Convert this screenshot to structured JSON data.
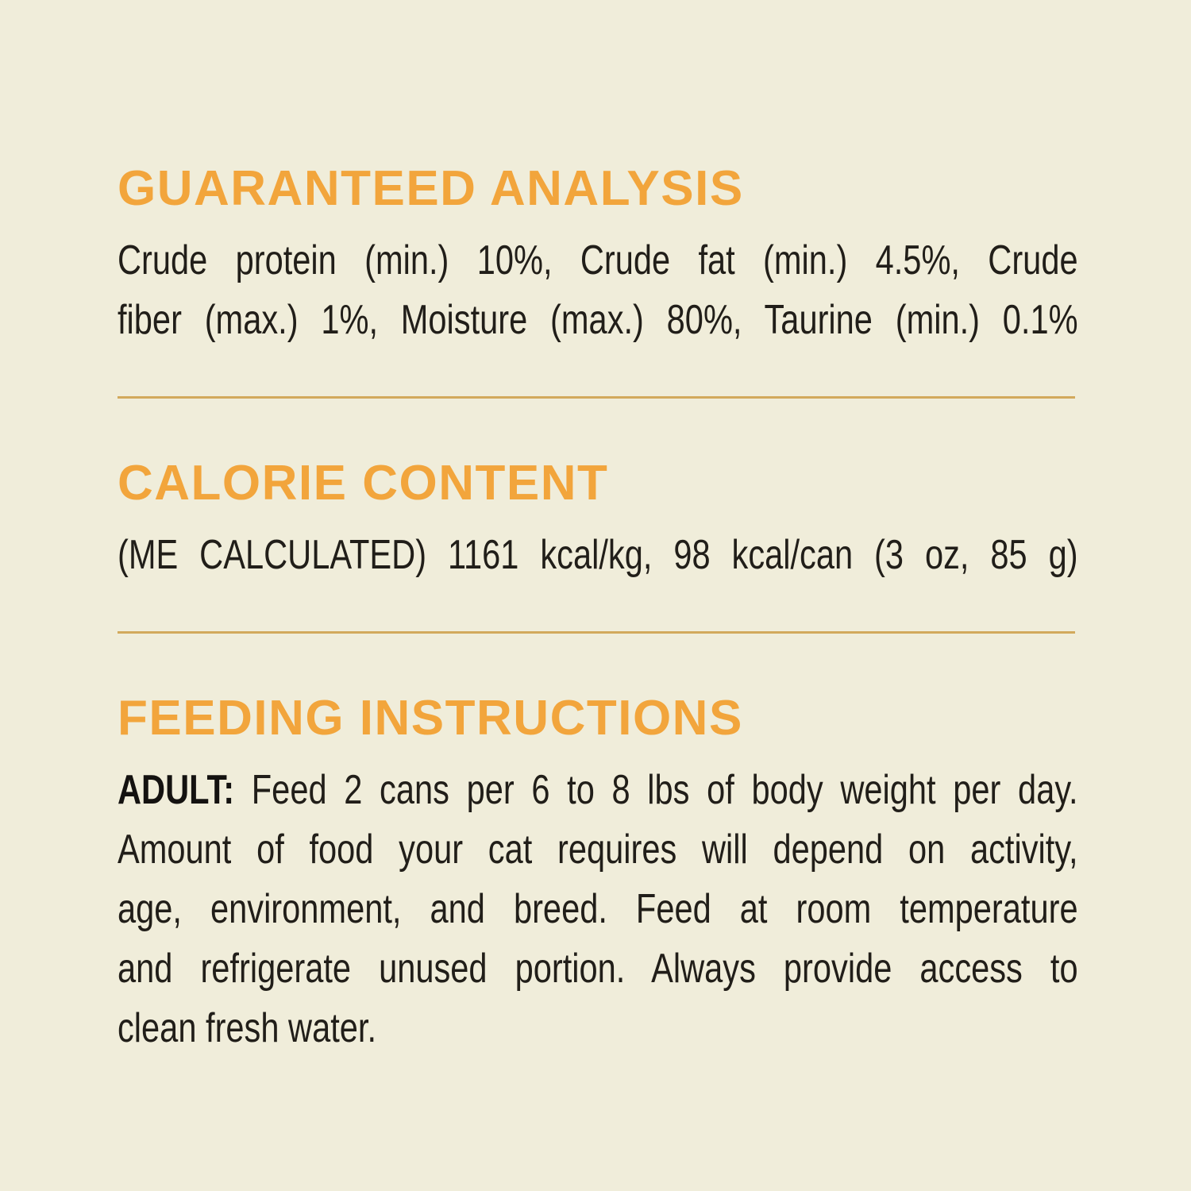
{
  "page": {
    "background_color": "#f0edda",
    "accent_color": "#f2a53c",
    "divider_color": "#d2a95c",
    "text_color": "#211e19"
  },
  "sections": {
    "guaranteed_analysis": {
      "title": "GUARANTEED ANALYSIS",
      "lines": [
        "Crude protein (min.) 10%, Crude fat (min.) 4.5%, Crude",
        "fiber (max.) 1%, Moisture (max.) 80%, Taurine (min.) 0.1%"
      ],
      "values": {
        "crude_protein_min": "10%",
        "crude_fat_min": "4.5%",
        "crude_fiber_max": "1%",
        "moisture_max": "80%",
        "taurine_min": "0.1%"
      }
    },
    "calorie_content": {
      "title": "CALORIE CONTENT",
      "line": "(ME CALCULATED) 1161 kcal/kg, 98 kcal/can (3 oz, 85 g)",
      "values": {
        "method": "ME CALCULATED",
        "kcal_per_kg": "1161",
        "kcal_per_can": "98",
        "can_size": "3 oz, 85 g"
      }
    },
    "feeding_instructions": {
      "title": "FEEDING INSTRUCTIONS",
      "adult_label": "ADULT:",
      "lines": [
        "Feed 2 cans per 6 to 8 lbs of body weight per day.",
        "Amount of food your cat requires will depend on activity,",
        "age, environment, and breed. Feed at room temperature",
        "and refrigerate unused portion. Always provide access to",
        "clean fresh water."
      ]
    }
  }
}
